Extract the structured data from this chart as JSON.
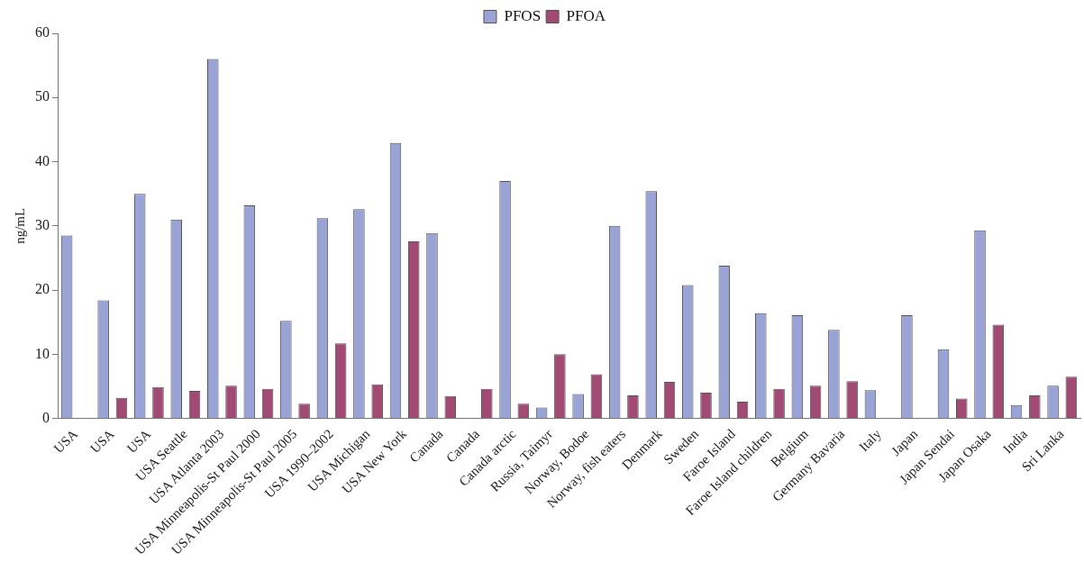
{
  "chart_data": {
    "type": "bar",
    "ylabel": "ng/mL",
    "categories": [
      "USA",
      "USA",
      "USA",
      "USA Seattle",
      "USA Atlanta 2003",
      "USA Minneapolis-St Paul 2000",
      "USA Minneapolis-St Paul 2005",
      "USA 1990–2002",
      "USA Michigan",
      "USA New York",
      "Canada",
      "Canada",
      "Canada arctic",
      "Russia, Taimyr",
      "Norway, Bodoe",
      "Norway, fish eaters",
      "Denmark",
      "Sweden",
      "Faroe Island",
      "Faroe Island children",
      "Belgium",
      "Germany Bavaria",
      "Italy",
      "Japan",
      "Japan Sendai",
      "Japan Osaka",
      "India",
      "Sri Lanka"
    ],
    "series": [
      {
        "name": "PFOS",
        "color": "#99a3d6",
        "values": [
          28.5,
          18.4,
          35,
          31,
          56,
          33.2,
          15.2,
          31.2,
          32.6,
          42.9,
          28.9,
          null,
          37,
          1.7,
          3.8,
          30,
          35.4,
          20.8,
          23.8,
          16.4,
          16.1,
          13.8,
          4.4,
          16.1,
          10.8,
          29.3,
          2.1,
          5.1
        ]
      },
      {
        "name": "PFOA",
        "color": "#a04a74",
        "values": [
          null,
          3.2,
          4.9,
          4.3,
          5.1,
          4.6,
          2.3,
          11.7,
          5.3,
          27.6,
          3.5,
          4.6,
          2.3,
          10.0,
          6.9,
          3.6,
          5.7,
          4.0,
          2.6,
          4.6,
          5.1,
          5.8,
          null,
          null,
          3.1,
          14.6,
          3.6,
          6.5
        ]
      }
    ],
    "ylim": [
      0,
      60
    ],
    "yticks": [
      0,
      10,
      20,
      30,
      40,
      50,
      60
    ],
    "grid": false,
    "legend": "top"
  }
}
